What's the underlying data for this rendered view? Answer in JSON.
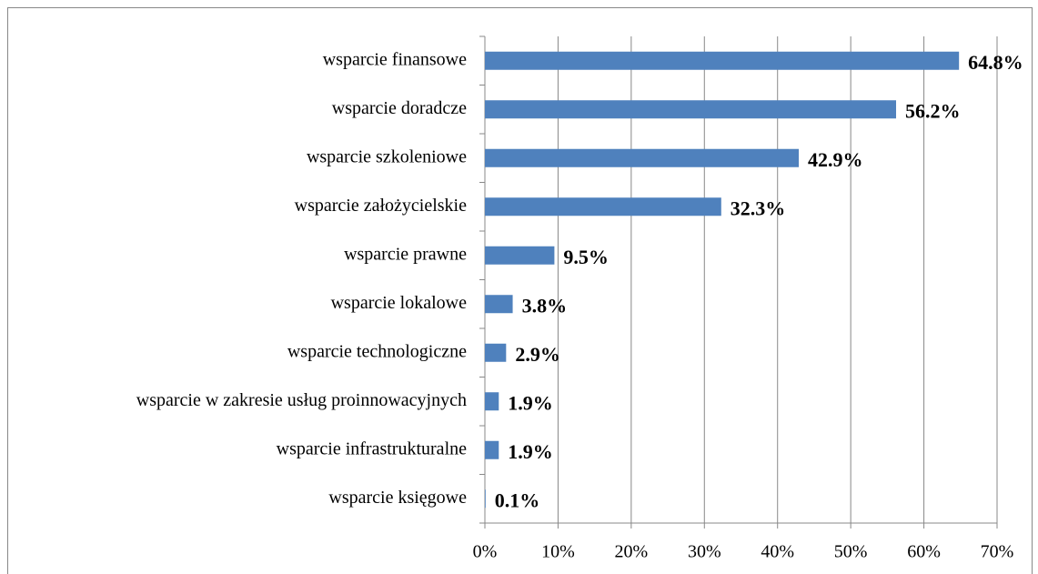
{
  "chart_data": {
    "type": "bar",
    "orientation": "horizontal",
    "categories": [
      "wsparcie finansowe",
      "wsparcie doradcze",
      "wsparcie szkoleniowe",
      "wsparcie założycielskie",
      "wsparcie prawne",
      "wsparcie lokalowe",
      "wsparcie technologiczne",
      "wsparcie w zakresie usług proinnowacyjnych",
      "wsparcie infrastrukturalne",
      "wsparcie księgowe"
    ],
    "values": [
      64.8,
      56.2,
      42.9,
      32.3,
      9.5,
      3.8,
      2.9,
      1.9,
      1.9,
      0.1
    ],
    "value_labels": [
      "64.8%",
      "56.2%",
      "42.9%",
      "32.3%",
      "9.5%",
      "3.8%",
      "2.9%",
      "1.9%",
      "1.9%",
      "0.1%"
    ],
    "color": "#4f81bd",
    "xlim": [
      0,
      70
    ],
    "xticks": [
      {
        "value": 0,
        "label": "0%"
      },
      {
        "value": 10,
        "label": "10%"
      },
      {
        "value": 20,
        "label": "20%"
      },
      {
        "value": 30,
        "label": "30%"
      },
      {
        "value": 40,
        "label": "40%"
      },
      {
        "value": 50,
        "label": "50%"
      },
      {
        "value": 60,
        "label": "60%"
      },
      {
        "value": 70,
        "label": "70%"
      }
    ],
    "grid": true
  }
}
